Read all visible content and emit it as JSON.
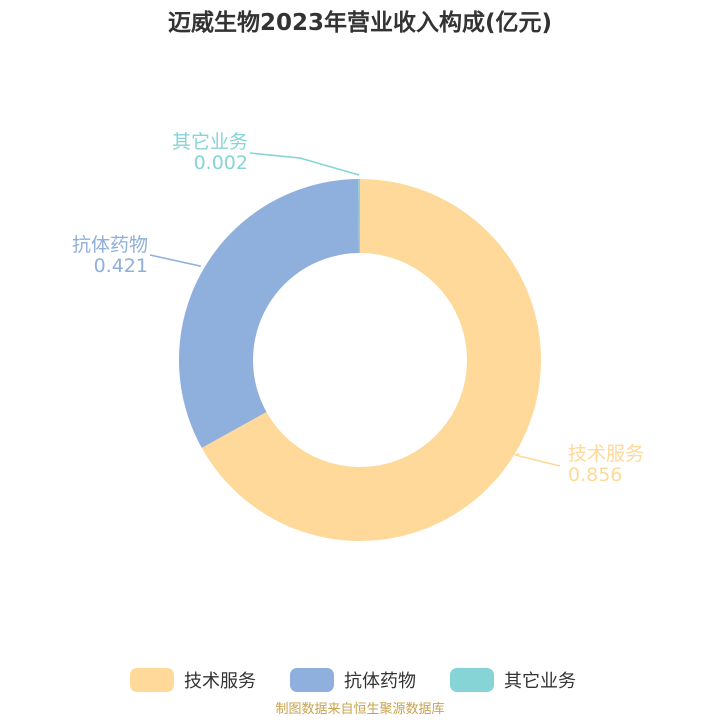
{
  "chart_data": {
    "type": "pie",
    "title": "迈威生物2023年营业收入构成(亿元)",
    "series": [
      {
        "name": "技术服务",
        "value": 0.856,
        "value_label": "0.856",
        "color": "#ffd99a"
      },
      {
        "name": "抗体药物",
        "value": 0.421,
        "value_label": "0.421",
        "color": "#8fafdc"
      },
      {
        "name": "其它业务",
        "value": 0.002,
        "value_label": "0.002",
        "color": "#86d4d6"
      }
    ],
    "legend": "bottom",
    "donut": true
  },
  "source": "制图数据来自恒生聚源数据库"
}
